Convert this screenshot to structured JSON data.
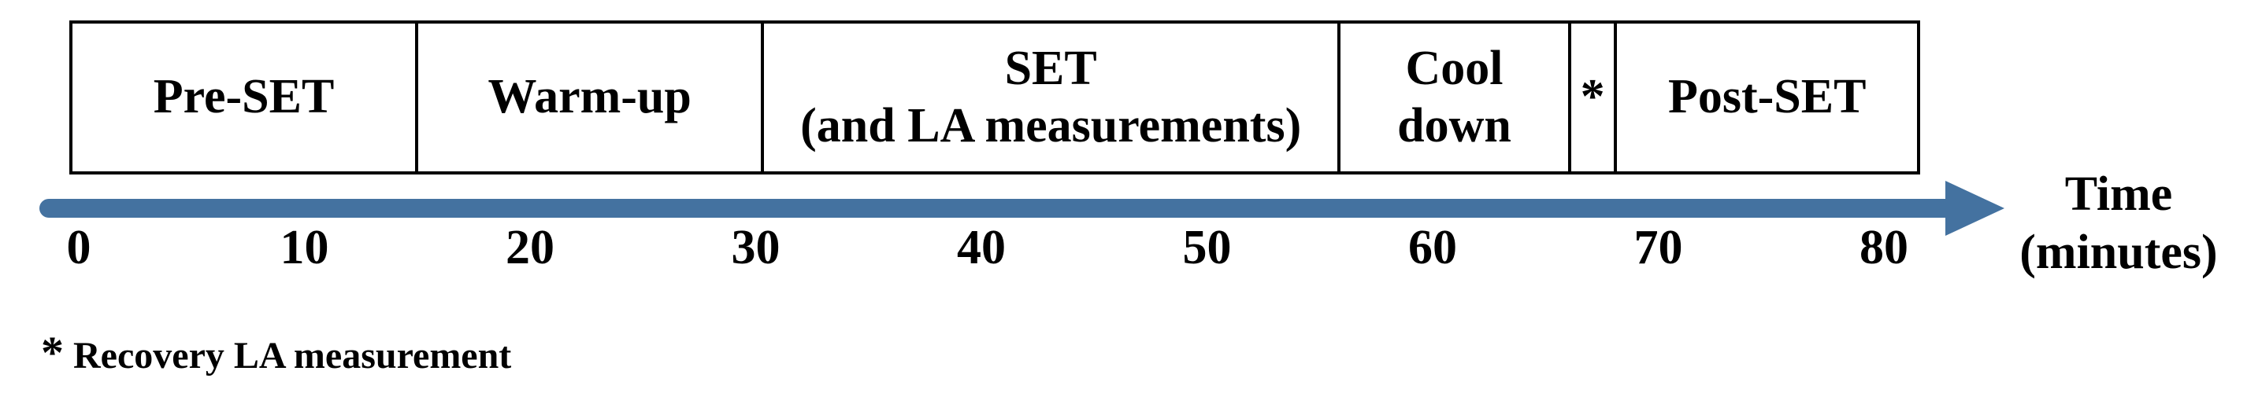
{
  "phases": [
    {
      "line1": "Pre-SET",
      "line2": "",
      "start": 0,
      "end": 15
    },
    {
      "line1": "Warm-up",
      "line2": "",
      "start": 15,
      "end": 30
    },
    {
      "line1": "SET",
      "line2": "(and LA measurements)",
      "start": 30,
      "end": 55
    },
    {
      "line1": "Cool",
      "line2": "down",
      "start": 55,
      "end": 65
    },
    {
      "line1": "*",
      "line2": "",
      "start": 65,
      "end": 67
    },
    {
      "line1": "Post-SET",
      "line2": "",
      "start": 67,
      "end": 80
    }
  ],
  "axis": {
    "label_line1": "Time",
    "label_line2": "(minutes)",
    "ticks": [
      "0",
      "10",
      "20",
      "30",
      "40",
      "50",
      "60",
      "70",
      "80"
    ],
    "color": "#4472a0"
  },
  "footnote": {
    "symbol": "*",
    "text": "Recovery LA measurement"
  }
}
